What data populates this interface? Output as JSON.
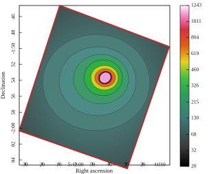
{
  "chart_data": {
    "type": "image",
    "x_label": "Right ascension",
    "y_label": "Declination",
    "x_tick_labels": [
      "30",
      "20",
      "10",
      "5:42:00",
      "50",
      "40",
      "30",
      "20",
      "41:10"
    ],
    "y_tick_labels": [
      "46",
      "48",
      "-1:50",
      "52",
      "54",
      "56",
      "58",
      "-2:00",
      "02",
      "04"
    ],
    "colorbar": {
      "scale": "sqrt",
      "range": [
        20,
        1243
      ],
      "ticks": [
        20,
        32,
        68,
        130,
        215,
        326,
        460,
        619,
        804,
        1011,
        1243
      ]
    }
  }
}
